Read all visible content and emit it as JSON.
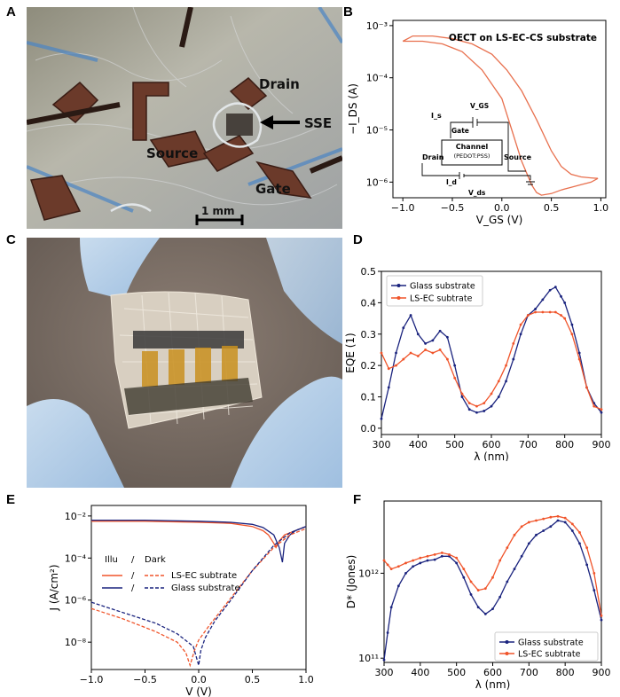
{
  "panels": {
    "a": {
      "letter": "A",
      "annotations": {
        "drain": "Drain",
        "source": "Source",
        "gate": "Gate",
        "sse": "SSE",
        "scalebar": "1 mm"
      }
    },
    "b": {
      "letter": "B"
    },
    "c": {
      "letter": "C"
    },
    "d": {
      "letter": "D"
    },
    "e": {
      "letter": "E"
    },
    "f": {
      "letter": "F"
    }
  },
  "colors": {
    "navy": "#1a237e",
    "orange": "#f0542a",
    "orangeB": "#e8704e"
  },
  "chart_data": [
    {
      "id": "B",
      "type": "line",
      "title": "OECT on LS-EC-CS substrate",
      "xlabel": "V_GS (V)",
      "ylabel": "−I_DS (A)",
      "xlim": [
        -1.1,
        1.05
      ],
      "ylim_log10": [
        -6.3,
        -2.9
      ],
      "yscale": "log",
      "xticks": [
        "−1.0",
        "−0.5",
        "0.0",
        "0.5",
        "1.0"
      ],
      "yticks": [
        "10⁻⁶",
        "10⁻⁵",
        "10⁻⁴",
        "10⁻³"
      ],
      "series": [
        {
          "x": [
            -1.0,
            -0.9,
            -0.7,
            -0.5,
            -0.3,
            -0.1,
            0.05,
            0.2,
            0.35,
            0.5,
            0.6,
            0.7,
            0.8,
            0.9,
            0.97
          ],
          "y_log10": [
            -3.3,
            -3.2,
            -3.2,
            -3.25,
            -3.35,
            -3.55,
            -3.85,
            -4.25,
            -4.8,
            -5.4,
            -5.7,
            -5.85,
            -5.9,
            -5.92,
            -5.93
          ]
        },
        {
          "x": [
            0.97,
            0.9,
            0.8,
            0.7,
            0.6,
            0.5,
            0.4,
            0.35,
            0.3,
            0.2,
            0.1,
            0.0,
            -0.2,
            -0.4,
            -0.6,
            -0.8,
            -1.0
          ],
          "y_log10": [
            -5.93,
            -6.0,
            -6.05,
            -6.1,
            -6.15,
            -6.22,
            -6.25,
            -6.2,
            -6.05,
            -5.6,
            -5.0,
            -4.4,
            -3.85,
            -3.5,
            -3.35,
            -3.3,
            -3.3
          ]
        }
      ],
      "inset": {
        "is": "I_s",
        "gate": "Gate",
        "vgs": "V_GS",
        "channel": "Channel",
        "pedot": "(PEDOT:PSS)",
        "drain": "Drain",
        "source": "Source",
        "id": "I_d",
        "vds": "V_ds"
      }
    },
    {
      "id": "D",
      "type": "line",
      "xlabel": "λ (nm)",
      "ylabel": "EQE (1)",
      "xlim": [
        300,
        900
      ],
      "ylim": [
        -0.02,
        0.5
      ],
      "xticks": [
        300,
        400,
        500,
        600,
        700,
        800,
        900
      ],
      "yticks": [
        "0.0",
        "0.1",
        "0.2",
        "0.3",
        "0.4",
        "0.5"
      ],
      "legend": "top-left",
      "series": [
        {
          "name": "Glass substrate",
          "color": "#1a237e",
          "x": [
            300,
            320,
            340,
            360,
            380,
            400,
            420,
            440,
            460,
            480,
            500,
            520,
            540,
            560,
            580,
            600,
            620,
            640,
            660,
            680,
            700,
            720,
            740,
            760,
            775,
            790,
            800,
            820,
            840,
            860,
            880,
            900
          ],
          "y": [
            0.03,
            0.13,
            0.24,
            0.32,
            0.36,
            0.3,
            0.27,
            0.28,
            0.31,
            0.29,
            0.2,
            0.1,
            0.06,
            0.05,
            0.055,
            0.07,
            0.1,
            0.15,
            0.22,
            0.3,
            0.36,
            0.38,
            0.41,
            0.44,
            0.45,
            0.42,
            0.4,
            0.33,
            0.24,
            0.13,
            0.08,
            0.05
          ]
        },
        {
          "name": "LS-EC subtrate",
          "color": "#f0542a",
          "x": [
            300,
            320,
            340,
            360,
            380,
            400,
            420,
            440,
            460,
            480,
            500,
            520,
            540,
            560,
            580,
            600,
            620,
            640,
            660,
            680,
            700,
            720,
            740,
            760,
            775,
            790,
            800,
            820,
            840,
            860,
            880,
            900
          ],
          "y": [
            0.24,
            0.19,
            0.2,
            0.22,
            0.24,
            0.23,
            0.25,
            0.24,
            0.25,
            0.22,
            0.16,
            0.11,
            0.08,
            0.07,
            0.08,
            0.11,
            0.15,
            0.2,
            0.27,
            0.33,
            0.36,
            0.37,
            0.37,
            0.37,
            0.37,
            0.36,
            0.35,
            0.3,
            0.22,
            0.13,
            0.07,
            0.06
          ]
        }
      ]
    },
    {
      "id": "E",
      "type": "line",
      "xlabel": "V (V)",
      "ylabel": "J (A/cm²)",
      "yscale": "log",
      "xlim": [
        -1.0,
        1.0
      ],
      "ylim_log10": [
        -9.3,
        -1.5
      ],
      "xticks": [
        "−1.0",
        "−0.5",
        "0.0",
        "0.5",
        "1.0"
      ],
      "yticks": [
        "10⁻⁸",
        "10⁻⁶",
        "10⁻⁴",
        "10⁻²"
      ],
      "legend": {
        "illu": "Illu",
        "slash1": "/",
        "slash2": "/",
        "dark": "Dark",
        "ls": "LS-EC subtrate",
        "glass": "Glass substrate"
      },
      "series": [
        {
          "name": "LS-EC illu",
          "color": "#f0542a",
          "dash": false,
          "x": [
            -1.0,
            -0.5,
            0.0,
            0.3,
            0.5,
            0.6,
            0.65,
            0.7,
            0.72,
            0.75,
            0.8,
            0.9,
            1.0
          ],
          "y_log10": [
            -2.25,
            -2.25,
            -2.3,
            -2.35,
            -2.5,
            -2.7,
            -2.9,
            -3.3,
            -3.5,
            -3.2,
            -2.9,
            -2.7,
            -2.5
          ]
        },
        {
          "name": "Glass illu",
          "color": "#1a237e",
          "dash": false,
          "x": [
            -1.0,
            -0.5,
            0.0,
            0.3,
            0.5,
            0.6,
            0.7,
            0.75,
            0.78,
            0.8,
            0.85,
            0.9,
            1.0
          ],
          "y_log10": [
            -2.2,
            -2.2,
            -2.25,
            -2.3,
            -2.4,
            -2.55,
            -2.9,
            -3.5,
            -4.2,
            -3.3,
            -2.9,
            -2.7,
            -2.5
          ]
        },
        {
          "name": "LS-EC dark",
          "color": "#f0542a",
          "dash": true,
          "x": [
            -1.0,
            -0.7,
            -0.4,
            -0.2,
            -0.12,
            -0.08,
            -0.04,
            0.0,
            0.1,
            0.3,
            0.5,
            0.7,
            0.85,
            1.0
          ],
          "y_log10": [
            -6.4,
            -6.9,
            -7.5,
            -8.0,
            -8.5,
            -9.1,
            -8.4,
            -7.9,
            -7.2,
            -5.9,
            -4.6,
            -3.5,
            -2.9,
            -2.6
          ]
        },
        {
          "name": "Glass dark",
          "color": "#1a237e",
          "dash": true,
          "x": [
            -1.0,
            -0.7,
            -0.4,
            -0.2,
            -0.05,
            0.0,
            0.02,
            0.06,
            0.15,
            0.3,
            0.5,
            0.7,
            0.85,
            1.0
          ],
          "y_log10": [
            -6.1,
            -6.6,
            -7.1,
            -7.6,
            -8.2,
            -9.1,
            -8.4,
            -7.8,
            -7.0,
            -6.0,
            -4.6,
            -3.4,
            -2.8,
            -2.5
          ]
        }
      ]
    },
    {
      "id": "F",
      "type": "line",
      "xlabel": "λ (nm)",
      "ylabel": "D* (Jones)",
      "yscale": "log",
      "xlim": [
        300,
        900
      ],
      "ylim_log10": [
        10.95,
        12.85
      ],
      "xticks": [
        300,
        400,
        500,
        600,
        700,
        800,
        900
      ],
      "yticks": [
        "10¹¹",
        "10¹²"
      ],
      "legend": "bottom-right",
      "series": [
        {
          "name": "Glass substrate",
          "color": "#1a237e",
          "x": [
            300,
            310,
            320,
            340,
            360,
            380,
            400,
            420,
            440,
            460,
            480,
            500,
            520,
            540,
            560,
            580,
            600,
            620,
            640,
            660,
            680,
            700,
            720,
            740,
            760,
            780,
            800,
            820,
            840,
            860,
            880,
            900
          ],
          "y_log10": [
            10.98,
            11.3,
            11.6,
            11.85,
            12.0,
            12.08,
            12.12,
            12.15,
            12.16,
            12.2,
            12.2,
            12.12,
            11.95,
            11.75,
            11.6,
            11.52,
            11.58,
            11.72,
            11.9,
            12.05,
            12.2,
            12.35,
            12.45,
            12.5,
            12.55,
            12.62,
            12.6,
            12.5,
            12.35,
            12.1,
            11.8,
            11.45
          ]
        },
        {
          "name": "LS-EC subtrate",
          "color": "#f0542a",
          "x": [
            300,
            310,
            320,
            340,
            360,
            380,
            400,
            420,
            440,
            460,
            480,
            500,
            520,
            540,
            560,
            580,
            600,
            620,
            640,
            660,
            680,
            700,
            720,
            740,
            760,
            780,
            800,
            820,
            840,
            860,
            880,
            900
          ],
          "y_log10": [
            12.15,
            12.1,
            12.05,
            12.08,
            12.12,
            12.15,
            12.18,
            12.2,
            12.22,
            12.24,
            12.22,
            12.18,
            12.05,
            11.9,
            11.8,
            11.82,
            11.95,
            12.15,
            12.3,
            12.45,
            12.55,
            12.6,
            12.62,
            12.64,
            12.66,
            12.67,
            12.65,
            12.58,
            12.48,
            12.3,
            12.0,
            11.5
          ]
        }
      ]
    }
  ]
}
